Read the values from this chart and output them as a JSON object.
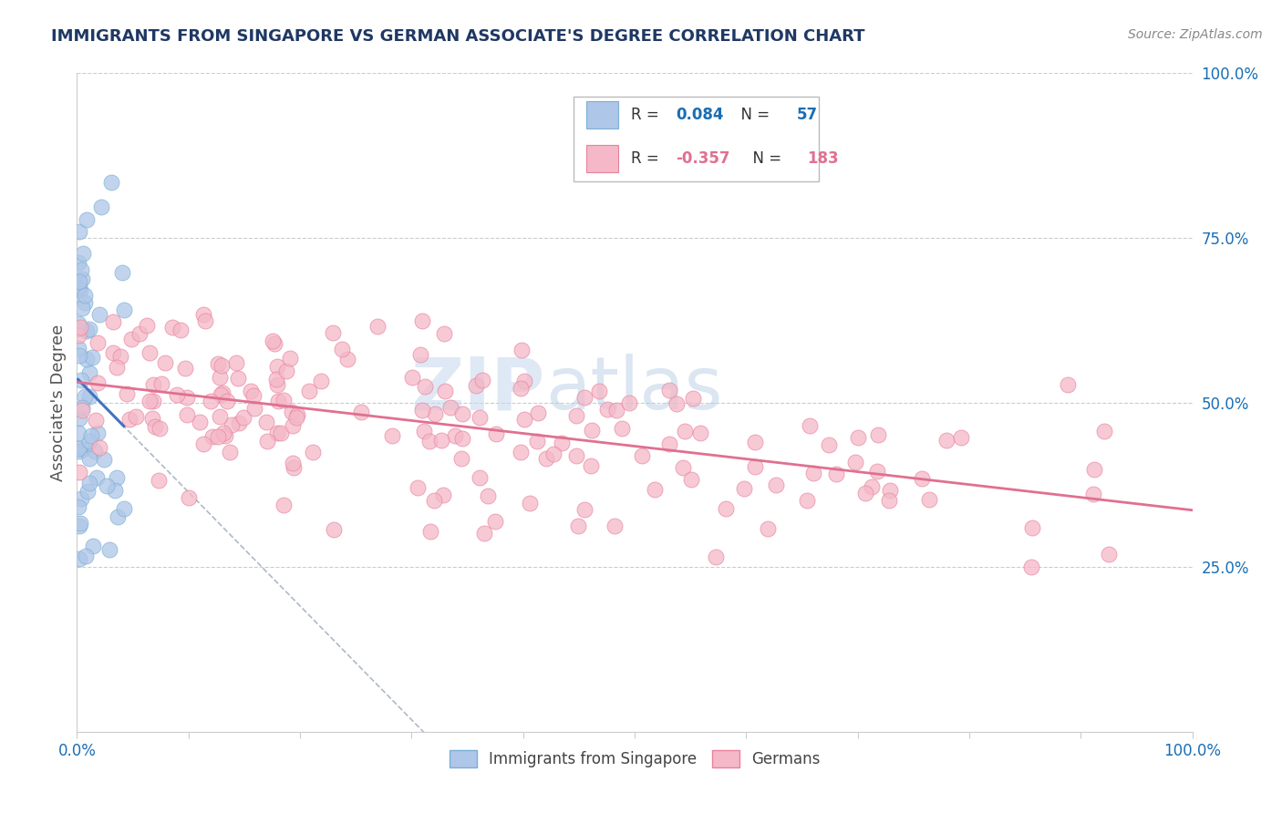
{
  "title": "IMMIGRANTS FROM SINGAPORE VS GERMAN ASSOCIATE'S DEGREE CORRELATION CHART",
  "source": "Source: ZipAtlas.com",
  "ylabel": "Associate's Degree",
  "blue_color": "#aec6e8",
  "blue_edge_color": "#7aafd4",
  "blue_line_color": "#4472c4",
  "blue_fill_color": "#aec6e8",
  "pink_color": "#f4b8c8",
  "pink_edge_color": "#e8829a",
  "pink_line_color": "#e07090",
  "pink_fill_color": "#f4b8c8",
  "watermark_zip": "ZIP",
  "watermark_atlas": "atlas",
  "title_color": "#1f3864",
  "axis_label_color": "#555555",
  "tick_color": "#1a6eb5",
  "legend_text_color": "#333333",
  "grid_color": "#c0c0c0",
  "background_color": "#ffffff",
  "blue_r": 0.084,
  "blue_n": 57,
  "pink_r": -0.357,
  "pink_n": 183,
  "blue_r_color": "#1a6eb5",
  "pink_r_color": "#e07090"
}
